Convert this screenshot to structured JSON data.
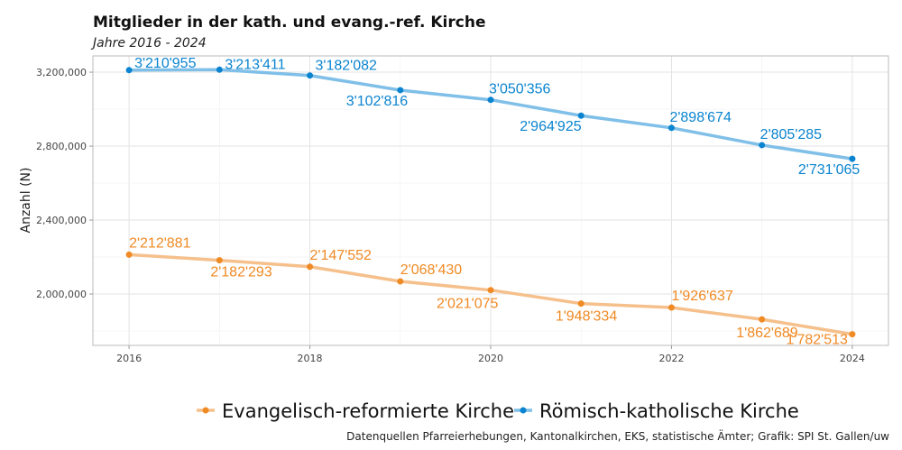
{
  "chart_data": {
    "type": "line",
    "title": "Mitglieder in der kath. und evang.-ref. Kirche",
    "subtitle": "Jahre 2016 - 2024",
    "ylabel": "Anzahl (N)",
    "xlabel": "",
    "x": [
      2016,
      2017,
      2018,
      2019,
      2020,
      2021,
      2022,
      2023,
      2024
    ],
    "xticks": [
      "2016",
      "2018",
      "2020",
      "2022",
      "2024"
    ],
    "yticks": [
      "3,200,000",
      "2,800,000",
      "2,400,000",
      "2,000,000"
    ],
    "ylim": [
      1722000,
      3288000
    ],
    "xlim": [
      2015.6,
      2024.4
    ],
    "grid": true,
    "legend": "bottom",
    "series": [
      {
        "name": "Evangelisch-reformierte Kirche",
        "color": "#f08a24",
        "line_color": "#f5c08c",
        "values": [
          2212881,
          2182293,
          2147552,
          2068430,
          2021075,
          1948334,
          1926637,
          1862689,
          1782513
        ],
        "labels": [
          "2'212'881",
          "2'182'293",
          "2'147'552",
          "2'068'430",
          "2'021'075",
          "1'948'334",
          "1'926'637",
          "1'862'689",
          "1'782'513"
        ]
      },
      {
        "name": "Römisch-katholische Kirche",
        "color": "#0a84d0",
        "line_color": "#7fbfe8",
        "values": [
          3210955,
          3213411,
          3182082,
          3102816,
          3050356,
          2964925,
          2898674,
          2805285,
          2731065
        ],
        "labels": [
          "3'210'955",
          "3'213'411",
          "3'182'082",
          "3'102'816",
          "3'050'356",
          "2'964'925",
          "2'898'674",
          "2'805'285",
          "2'731'065"
        ]
      }
    ],
    "caption": "Datenquellen Pfarreierhebungen, Kantonalkirchen, EKS, statistische Ämter; Grafik: SPI St. Gallen/uw"
  }
}
